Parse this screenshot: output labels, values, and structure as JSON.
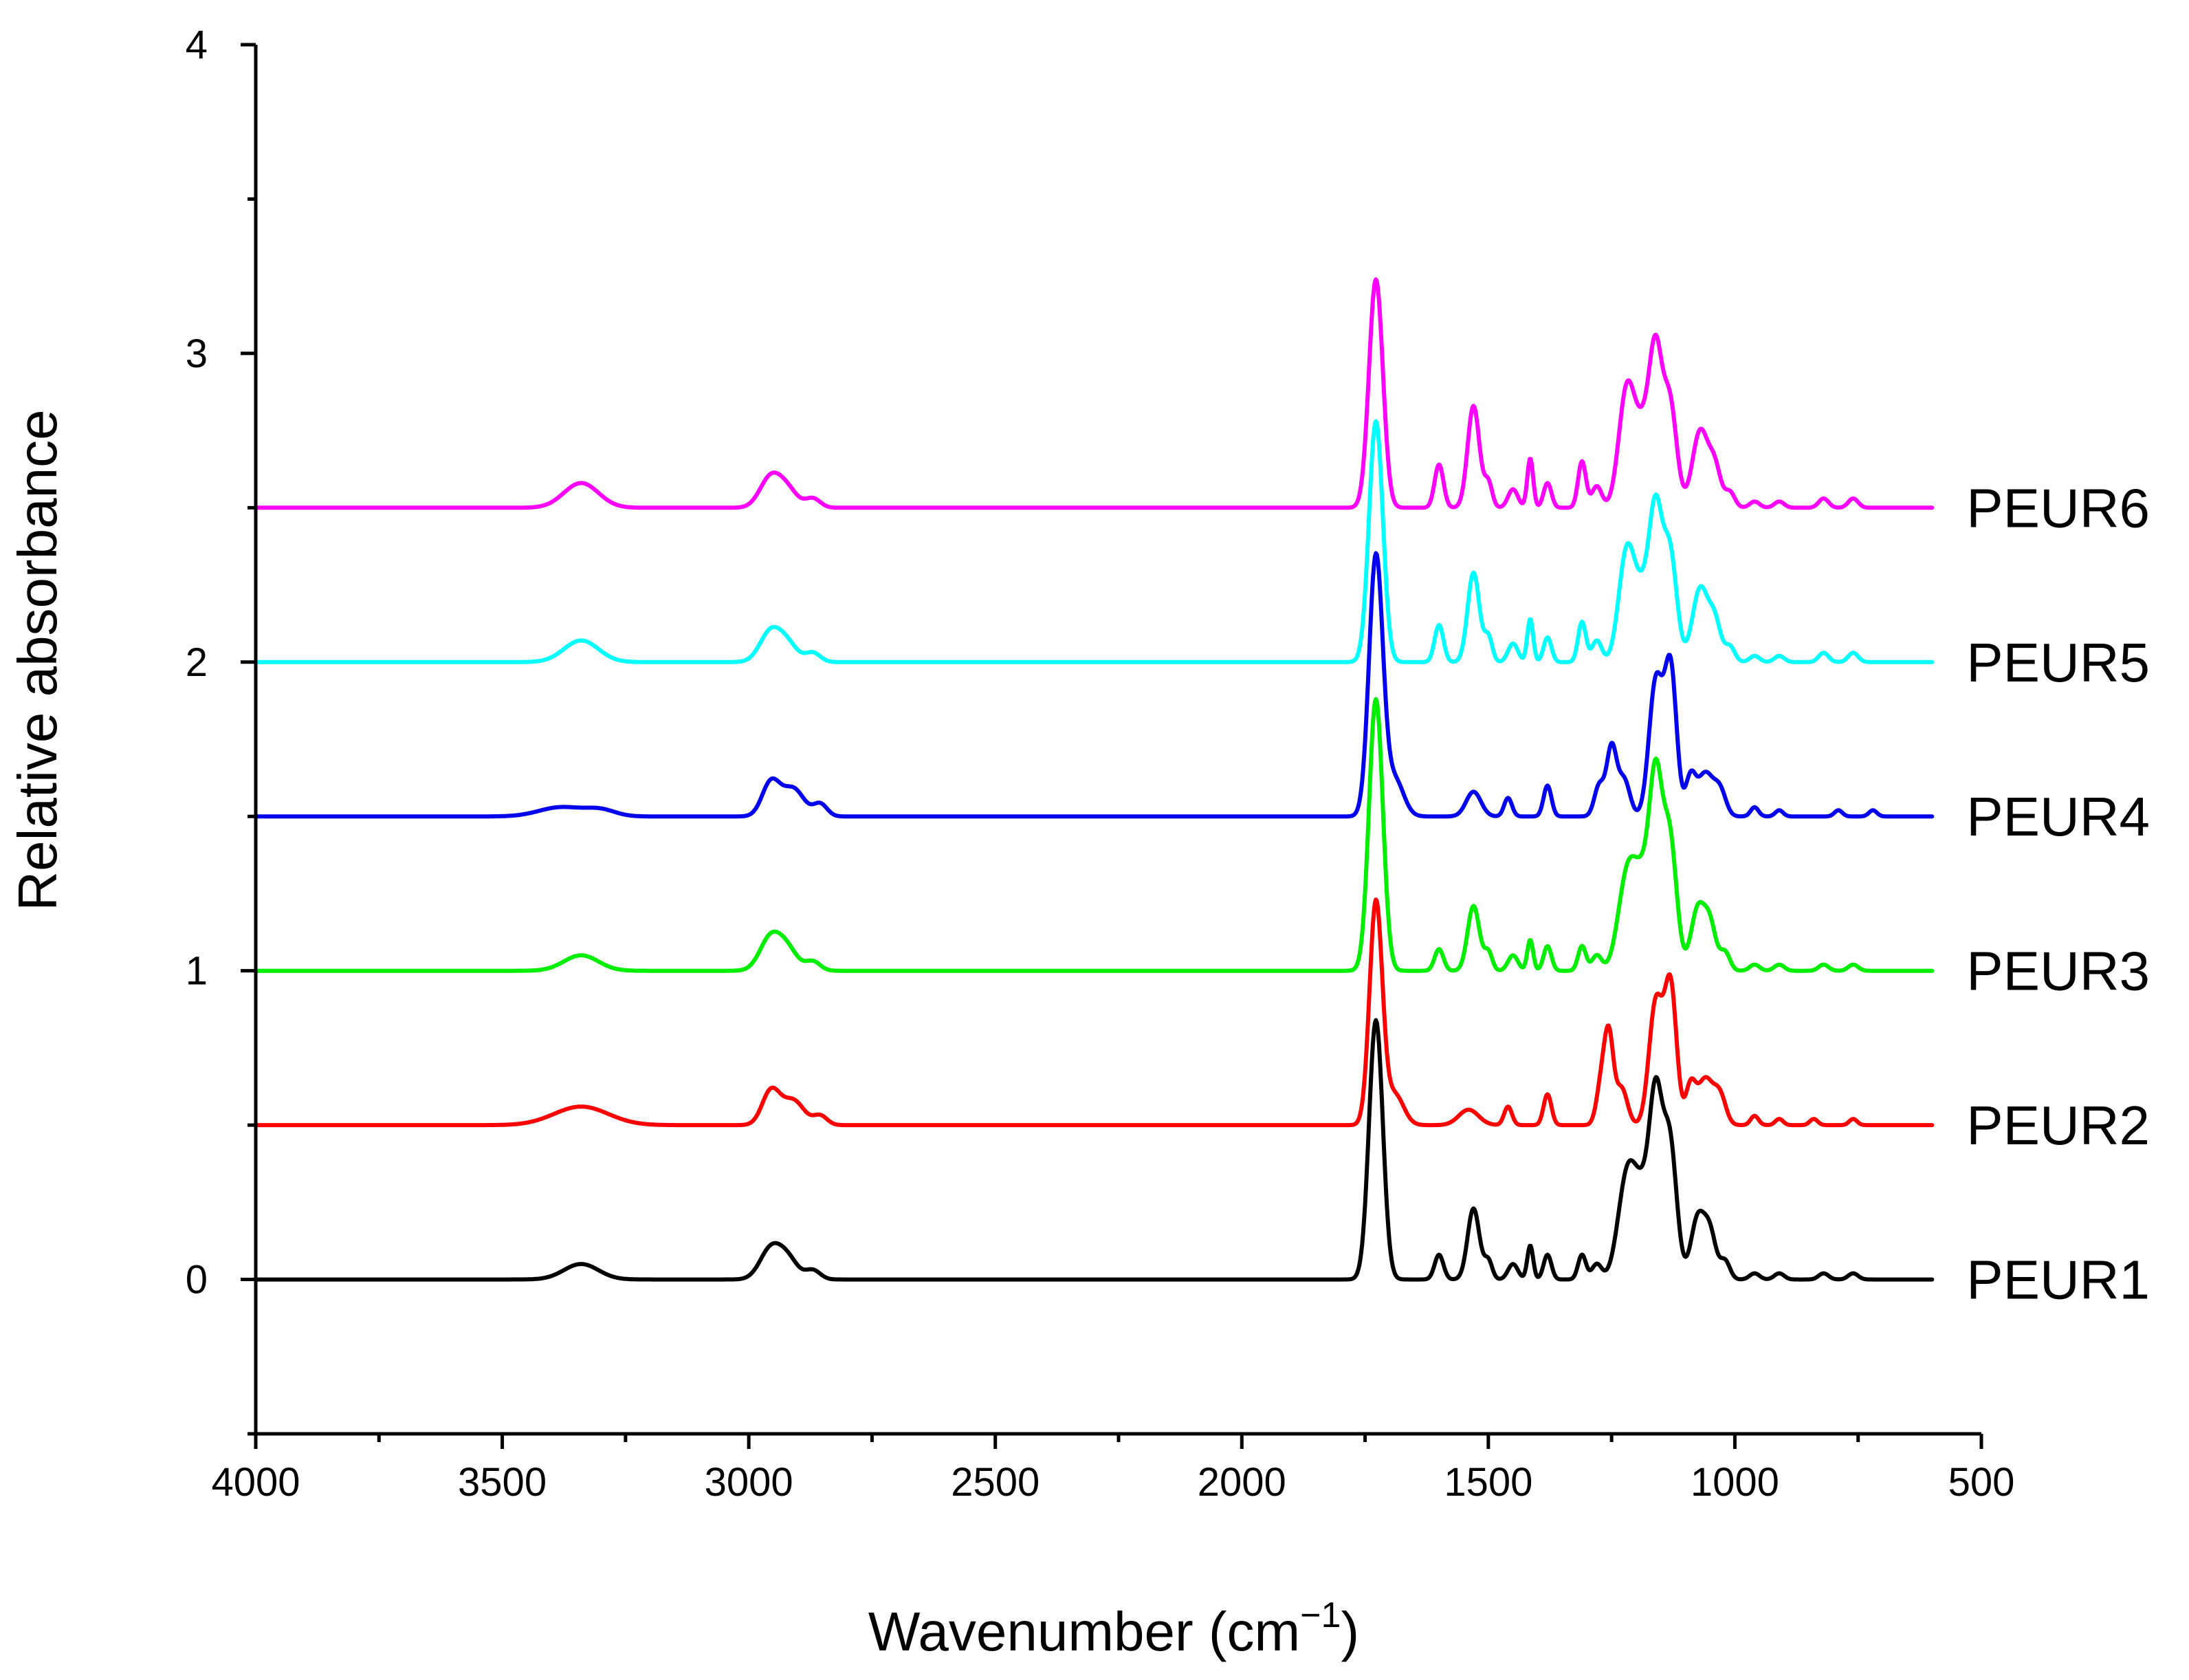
{
  "chart_data": {
    "type": "line",
    "title": "",
    "xlabel": "Wavenumber (cm",
    "xlabel_sup": "−1",
    "xlabel_end": ")",
    "ylabel": "Relative absorbance",
    "xlim": [
      4000,
      500
    ],
    "ylim": [
      -0.5,
      4
    ],
    "x_reversed": true,
    "x_ticks": [
      4000,
      3500,
      3000,
      2500,
      2000,
      1500,
      1000,
      500
    ],
    "x_tick_labels": [
      "4000",
      "3500",
      "3000",
      "2500",
      "2000",
      "1500",
      "1000",
      "500"
    ],
    "y_ticks": [
      0,
      1,
      2,
      3,
      4
    ],
    "y_tick_labels": [
      "0",
      "1",
      "2",
      "3",
      "4"
    ],
    "grid": false,
    "x_range_plotted": [
      4000,
      600
    ],
    "x_minor_step": 250,
    "y_minor_step": 0.5,
    "series": [
      {
        "name": "PEUR1",
        "color": "#000000",
        "offset": 0.0,
        "peaks": [
          [
            3340,
            0.05,
            35
          ],
          [
            2955,
            0.1,
            22
          ],
          [
            2920,
            0.06,
            20
          ],
          [
            2870,
            0.03,
            15
          ],
          [
            1728,
            0.84,
            14
          ],
          [
            1600,
            0.08,
            9
          ],
          [
            1530,
            0.23,
            12
          ],
          [
            1500,
            0.06,
            8
          ],
          [
            1450,
            0.05,
            10
          ],
          [
            1415,
            0.11,
            6
          ],
          [
            1380,
            0.08,
            8
          ],
          [
            1310,
            0.08,
            8
          ],
          [
            1280,
            0.05,
            10
          ],
          [
            1220,
            0.28,
            18
          ],
          [
            1180,
            0.3,
            25
          ],
          [
            1160,
            0.38,
            12
          ],
          [
            1132,
            0.42,
            14
          ],
          [
            1075,
            0.2,
            14
          ],
          [
            1050,
            0.14,
            12
          ],
          [
            1020,
            0.06,
            10
          ],
          [
            960,
            0.02,
            10
          ],
          [
            910,
            0.02,
            10
          ],
          [
            820,
            0.02,
            10
          ],
          [
            760,
            0.02,
            10
          ]
        ]
      },
      {
        "name": "PEUR2",
        "color": "#ff0000",
        "offset": 0.5,
        "peaks": [
          [
            3340,
            0.06,
            55
          ],
          [
            2955,
            0.11,
            18
          ],
          [
            2910,
            0.08,
            22
          ],
          [
            2855,
            0.03,
            14
          ],
          [
            1728,
            0.72,
            13
          ],
          [
            1690,
            0.1,
            18
          ],
          [
            1540,
            0.05,
            20
          ],
          [
            1460,
            0.06,
            8
          ],
          [
            1380,
            0.1,
            8
          ],
          [
            1270,
            0.14,
            10
          ],
          [
            1255,
            0.26,
            9
          ],
          [
            1230,
            0.12,
            12
          ],
          [
            1160,
            0.4,
            14
          ],
          [
            1130,
            0.44,
            12
          ],
          [
            1090,
            0.12,
            10
          ],
          [
            1060,
            0.15,
            16
          ],
          [
            1030,
            0.09,
            12
          ],
          [
            960,
            0.03,
            8
          ],
          [
            910,
            0.02,
            8
          ],
          [
            840,
            0.02,
            8
          ],
          [
            760,
            0.02,
            8
          ]
        ]
      },
      {
        "name": "PEUR3",
        "color": "#00ee00",
        "offset": 1.0,
        "peaks": [
          [
            3340,
            0.05,
            35
          ],
          [
            2955,
            0.11,
            22
          ],
          [
            2920,
            0.06,
            20
          ],
          [
            2870,
            0.03,
            15
          ],
          [
            1728,
            0.88,
            14
          ],
          [
            1600,
            0.07,
            9
          ],
          [
            1530,
            0.21,
            12
          ],
          [
            1500,
            0.06,
            8
          ],
          [
            1450,
            0.05,
            10
          ],
          [
            1415,
            0.1,
            6
          ],
          [
            1380,
            0.08,
            8
          ],
          [
            1310,
            0.08,
            8
          ],
          [
            1280,
            0.05,
            10
          ],
          [
            1220,
            0.25,
            18
          ],
          [
            1180,
            0.32,
            25
          ],
          [
            1160,
            0.4,
            12
          ],
          [
            1132,
            0.4,
            14
          ],
          [
            1075,
            0.2,
            14
          ],
          [
            1050,
            0.14,
            12
          ],
          [
            1020,
            0.06,
            10
          ],
          [
            960,
            0.02,
            10
          ],
          [
            910,
            0.02,
            10
          ],
          [
            820,
            0.02,
            10
          ],
          [
            760,
            0.02,
            10
          ]
        ]
      },
      {
        "name": "PEUR4",
        "color": "#0000ee",
        "offset": 1.5,
        "peaks": [
          [
            3380,
            0.03,
            45
          ],
          [
            3300,
            0.02,
            30
          ],
          [
            2955,
            0.11,
            18
          ],
          [
            2910,
            0.09,
            22
          ],
          [
            2855,
            0.04,
            14
          ],
          [
            1728,
            0.84,
            14
          ],
          [
            1690,
            0.12,
            18
          ],
          [
            1530,
            0.08,
            15
          ],
          [
            1460,
            0.06,
            8
          ],
          [
            1380,
            0.1,
            8
          ],
          [
            1275,
            0.1,
            10
          ],
          [
            1250,
            0.22,
            10
          ],
          [
            1225,
            0.12,
            12
          ],
          [
            1160,
            0.44,
            14
          ],
          [
            1130,
            0.47,
            12
          ],
          [
            1090,
            0.12,
            10
          ],
          [
            1060,
            0.14,
            16
          ],
          [
            1030,
            0.08,
            12
          ],
          [
            960,
            0.03,
            8
          ],
          [
            910,
            0.02,
            8
          ],
          [
            790,
            0.02,
            8
          ],
          [
            720,
            0.02,
            8
          ]
        ]
      },
      {
        "name": "PEUR5",
        "color": "#00ffff",
        "offset": 2.0,
        "peaks": [
          [
            3340,
            0.07,
            35
          ],
          [
            2955,
            0.1,
            22
          ],
          [
            2920,
            0.05,
            20
          ],
          [
            2870,
            0.03,
            15
          ],
          [
            1728,
            0.78,
            14
          ],
          [
            1600,
            0.12,
            9
          ],
          [
            1530,
            0.29,
            12
          ],
          [
            1500,
            0.08,
            8
          ],
          [
            1450,
            0.06,
            10
          ],
          [
            1415,
            0.14,
            6
          ],
          [
            1380,
            0.08,
            8
          ],
          [
            1310,
            0.13,
            8
          ],
          [
            1280,
            0.07,
            10
          ],
          [
            1220,
            0.33,
            16
          ],
          [
            1180,
            0.25,
            22
          ],
          [
            1160,
            0.33,
            12
          ],
          [
            1132,
            0.35,
            14
          ],
          [
            1070,
            0.24,
            16
          ],
          [
            1040,
            0.12,
            12
          ],
          [
            1010,
            0.05,
            10
          ],
          [
            960,
            0.02,
            10
          ],
          [
            910,
            0.02,
            10
          ],
          [
            820,
            0.03,
            10
          ],
          [
            760,
            0.03,
            10
          ]
        ]
      },
      {
        "name": "PEUR6",
        "color": "#ff00ff",
        "offset": 2.5,
        "peaks": [
          [
            3340,
            0.08,
            35
          ],
          [
            2955,
            0.1,
            22
          ],
          [
            2920,
            0.05,
            20
          ],
          [
            2870,
            0.03,
            15
          ],
          [
            1728,
            0.74,
            14
          ],
          [
            1600,
            0.14,
            9
          ],
          [
            1530,
            0.33,
            12
          ],
          [
            1500,
            0.08,
            8
          ],
          [
            1450,
            0.06,
            10
          ],
          [
            1415,
            0.16,
            6
          ],
          [
            1380,
            0.08,
            8
          ],
          [
            1310,
            0.15,
            8
          ],
          [
            1280,
            0.07,
            10
          ],
          [
            1220,
            0.35,
            16
          ],
          [
            1180,
            0.28,
            22
          ],
          [
            1160,
            0.33,
            12
          ],
          [
            1132,
            0.33,
            14
          ],
          [
            1070,
            0.25,
            16
          ],
          [
            1040,
            0.12,
            12
          ],
          [
            1010,
            0.05,
            10
          ],
          [
            960,
            0.02,
            10
          ],
          [
            910,
            0.02,
            10
          ],
          [
            820,
            0.03,
            10
          ],
          [
            760,
            0.03,
            10
          ]
        ]
      }
    ]
  }
}
